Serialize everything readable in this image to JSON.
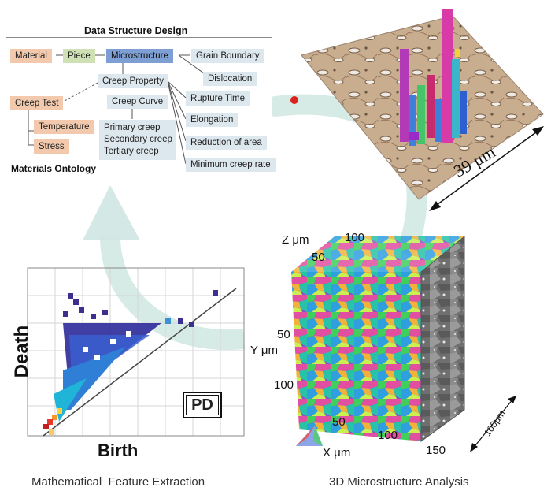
{
  "ontology": {
    "title": "Data Structure Design",
    "footer": "Materials Ontology",
    "nodes": {
      "material": "Material",
      "piece": "Piece",
      "microstructure": "Microstructure",
      "grain_boundary": "Grain Boundary",
      "dislocation": "Dislocation",
      "creep_property": "Creep Property",
      "creep_test": "Creep Test",
      "creep_curve": "Creep Curve",
      "rupture_time": "Rupture Time",
      "elongation": "Elongation",
      "temperature": "Temperature",
      "stress": "Stress",
      "primary_creep": "Primary creep",
      "secondary_creep": "Secondary creep",
      "tertiary_creep": "Tertiary creep",
      "reduction_of_area": "Reduction of area",
      "minimum_creep_rate": "Minimum creep rate"
    },
    "colors": {
      "material": "#f2c9ad",
      "piece": "#cfe1b4",
      "microstructure": "#7e9fd3",
      "property": "#dde7ee"
    }
  },
  "micro_top": {
    "scale_label": "39 μm"
  },
  "persistence_diagram": {
    "ylabel": "Death",
    "xlabel": "Birth",
    "badge": "PD"
  },
  "volume_3d": {
    "z_label": "Z μm",
    "z_ticks": [
      "100",
      "50"
    ],
    "y_label": "Y μm",
    "y_ticks": [
      "50",
      "100"
    ],
    "x_label": "X μm",
    "x_ticks": [
      "50",
      "100",
      "150"
    ],
    "depth_label": "100μm"
  },
  "captions": {
    "left": "Mathematical  Feature Extraction",
    "right": "3D Microstructure Analysis"
  }
}
